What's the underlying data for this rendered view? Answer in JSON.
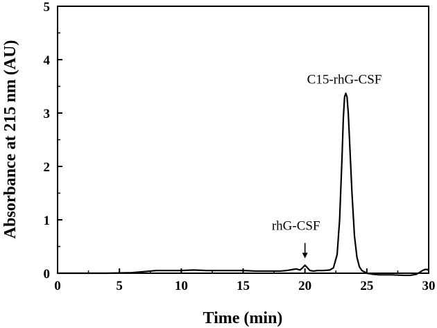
{
  "chart_data": {
    "type": "line",
    "title": "",
    "xlabel": "Time (min)",
    "ylabel": "Absorbance at 215 nm (AU)",
    "xlim": [
      0,
      30
    ],
    "ylim": [
      0,
      5
    ],
    "xticks": [
      0,
      5,
      10,
      15,
      20,
      25,
      30
    ],
    "yticks": [
      0,
      1,
      2,
      3,
      4,
      5
    ],
    "grid": false,
    "legend": "none",
    "line_color": "#000000",
    "series": [
      {
        "x": [
          0,
          2,
          4,
          6,
          7,
          8,
          9,
          10,
          11,
          12,
          13,
          14,
          15,
          16,
          17,
          18,
          18.5,
          19,
          19.3,
          19.6,
          19.8,
          20,
          20.2,
          20.4,
          20.7,
          21,
          21.5,
          22,
          22.3,
          22.6,
          22.8,
          23.0,
          23.1,
          23.2,
          23.3,
          23.4,
          23.5,
          23.6,
          23.8,
          24.0,
          24.2,
          24.4,
          24.6,
          25,
          25.5,
          26,
          27,
          28,
          28.5,
          29,
          29.3,
          29.5,
          29.7,
          29.9,
          30
        ],
        "y": [
          0.0,
          0.0,
          0.0,
          0.01,
          0.03,
          0.05,
          0.05,
          0.05,
          0.06,
          0.05,
          0.05,
          0.05,
          0.05,
          0.04,
          0.04,
          0.04,
          0.05,
          0.07,
          0.08,
          0.06,
          0.1,
          0.15,
          0.1,
          0.05,
          0.04,
          0.05,
          0.05,
          0.06,
          0.1,
          0.35,
          1.0,
          2.2,
          2.9,
          3.3,
          3.37,
          3.3,
          3.0,
          2.5,
          1.5,
          0.7,
          0.3,
          0.12,
          0.05,
          0.0,
          -0.02,
          -0.03,
          -0.03,
          -0.04,
          -0.04,
          -0.02,
          0.02,
          0.05,
          0.07,
          0.07,
          0.05
        ]
      }
    ],
    "annotations": [
      {
        "text": "C15-rhG-CSF",
        "x": 23.3,
        "y": 3.37,
        "arrow": false
      },
      {
        "text": "rhG-CSF",
        "x": 20.0,
        "y": 0.15,
        "arrow": true
      }
    ]
  }
}
